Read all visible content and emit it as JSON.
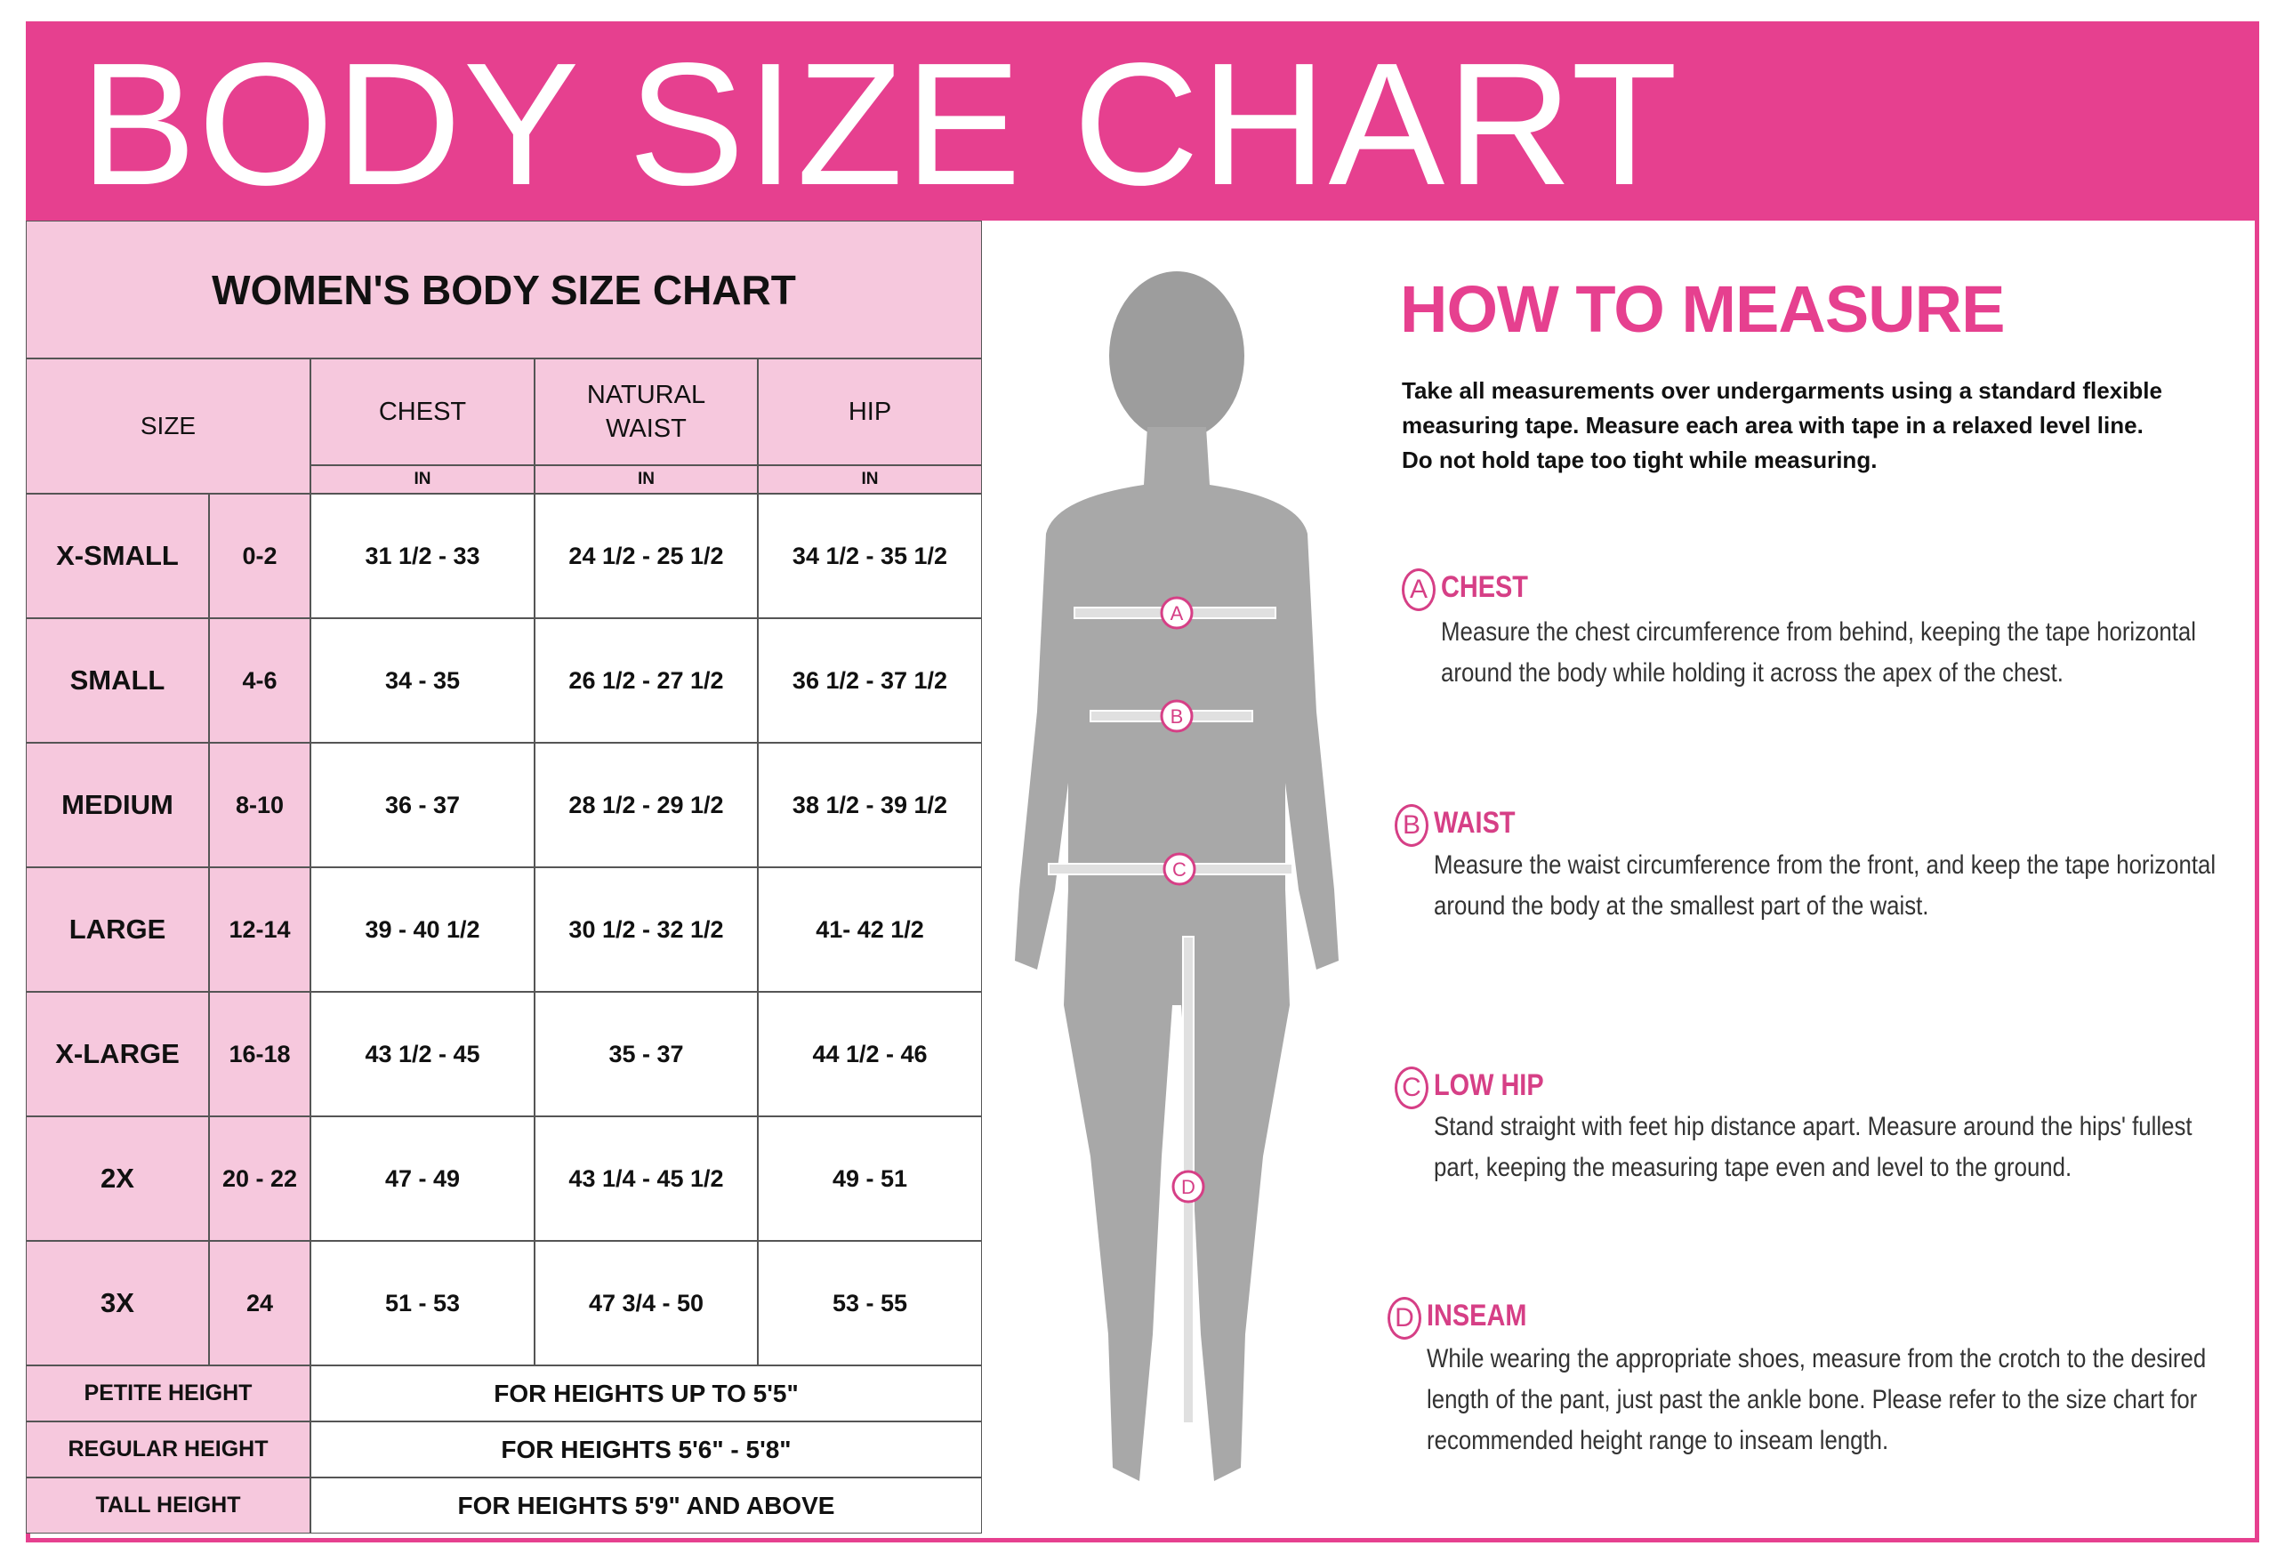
{
  "header": {
    "title": "BODY SIZE CHART"
  },
  "table": {
    "title": "WOMEN'S BODY SIZE CHART",
    "columns": [
      "SIZE",
      "CHEST",
      "NATURAL WAIST",
      "HIP"
    ],
    "units": [
      "IN",
      "IN",
      "IN"
    ],
    "rows": [
      [
        "X-SMALL",
        "0-2",
        "31 1/2 - 33",
        "24 1/2 - 25 1/2",
        "34 1/2 - 35 1/2"
      ],
      [
        "SMALL",
        "4-6",
        "34 - 35",
        "26 1/2 - 27 1/2",
        "36 1/2 - 37 1/2"
      ],
      [
        "MEDIUM",
        "8-10",
        "36 - 37",
        "28 1/2 - 29 1/2",
        "38 1/2 - 39 1/2"
      ],
      [
        "LARGE",
        "12-14",
        "39 - 40 1/2",
        "30 1/2 - 32 1/2",
        "41- 42 1/2"
      ],
      [
        "X-LARGE",
        "16-18",
        "43 1/2 - 45",
        "35 - 37",
        "44 1/2 - 46"
      ],
      [
        "2X",
        "20 - 22",
        "47 - 49",
        "43 1/4 - 45 1/2",
        "49 - 51"
      ],
      [
        "3X",
        "24",
        "51 - 53",
        "47 3/4 - 50",
        "53 - 55"
      ]
    ],
    "height_rows": [
      [
        "PETITE HEIGHT",
        "FOR HEIGHTS UP TO 5'5\""
      ],
      [
        "REGULAR HEIGHT",
        "FOR HEIGHTS 5'6\" - 5'8\""
      ],
      [
        "TALL HEIGHT",
        "FOR HEIGHTS 5'9\" AND ABOVE"
      ]
    ]
  },
  "measure": {
    "title": "HOW TO MEASURE",
    "intro": [
      "Take all measurements over undergarments using a standard flexible",
      "measuring tape. Measure each area with tape in a relaxed level line.",
      "Do not hold tape too tight while measuring."
    ],
    "items": [
      {
        "letter": "A",
        "name": "CHEST",
        "lines": [
          "Measure the chest circumference from behind, keeping the tape horizontal",
          "around the body while holding it across the apex of the chest."
        ]
      },
      {
        "letter": "B",
        "name": "WAIST",
        "lines": [
          "Measure the waist circumference from the front, and keep the tape horizontal",
          "around the body at the smallest part of the waist."
        ]
      },
      {
        "letter": "C",
        "name": "LOW HIP",
        "lines": [
          "Stand straight with feet hip distance apart. Measure around the hips' fullest",
          "part, keeping the measuring tape even and level to the ground."
        ]
      },
      {
        "letter": "D",
        "name": "INSEAM",
        "lines": [
          "While wearing the appropriate shoes, measure from the crotch to the desired",
          "length of the pant, just past the ankle bone. Please refer to the size chart for",
          "recommended height range to inseam length."
        ]
      }
    ]
  }
}
